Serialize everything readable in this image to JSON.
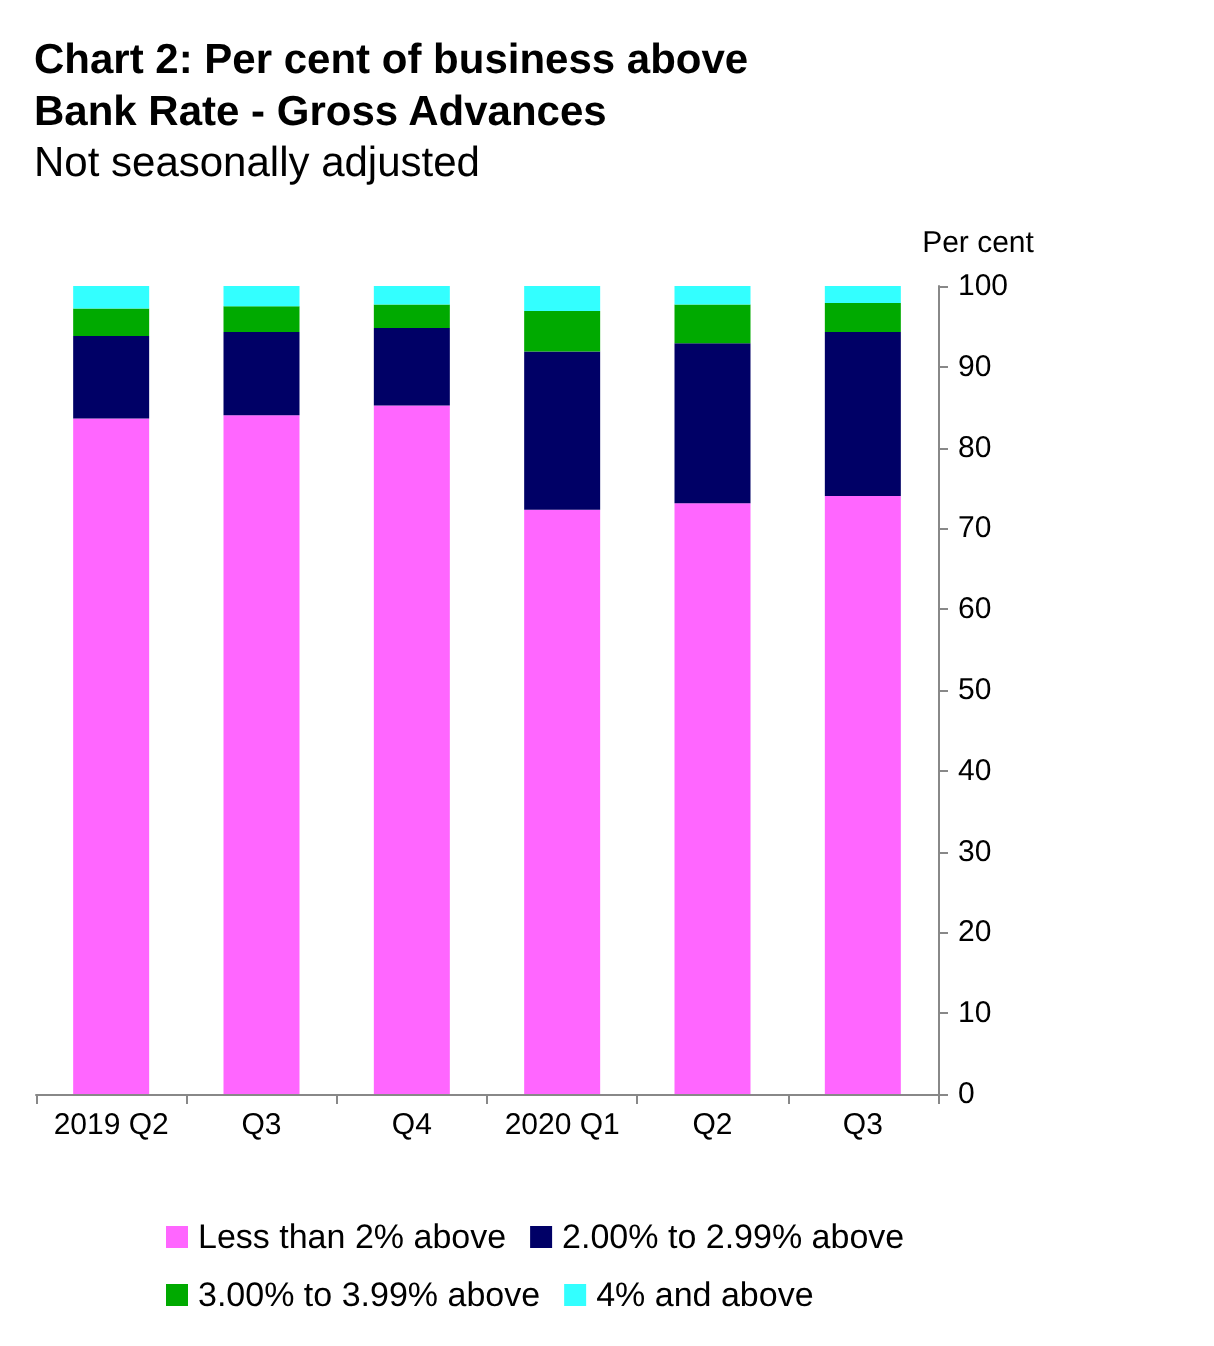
{
  "chart_data": {
    "type": "bar",
    "title": "Chart 2: Per cent of business above\nBank Rate - Gross Advances",
    "subtitle": "Not seasonally adjusted",
    "ylabel": "Per cent",
    "stacked": true,
    "categories": [
      "2019 Q2",
      "Q3",
      "Q4",
      "2020 Q1",
      "Q2",
      "Q3"
    ],
    "series": [
      {
        "name": "Less than 2% above",
        "color": "#ff66ff",
        "values": [
          83.6,
          84.0,
          85.2,
          72.3,
          73.1,
          74.0
        ]
      },
      {
        "name": "2.00% to 2.99% above",
        "color": "#000066",
        "values": [
          10.2,
          10.3,
          9.6,
          19.6,
          19.8,
          20.3
        ]
      },
      {
        "name": "3.00% to 3.99% above",
        "color": "#00aa00",
        "values": [
          3.4,
          3.2,
          2.9,
          5.0,
          4.8,
          3.6
        ]
      },
      {
        "name": "4% and above",
        "color": "#33ffff",
        "values": [
          2.8,
          2.5,
          2.3,
          3.1,
          2.3,
          2.1
        ]
      }
    ],
    "ylim": [
      0,
      100
    ],
    "yticks": [
      0,
      10,
      20,
      30,
      40,
      50,
      60,
      70,
      80,
      90,
      100
    ],
    "grid": false,
    "legend": "bottom"
  }
}
